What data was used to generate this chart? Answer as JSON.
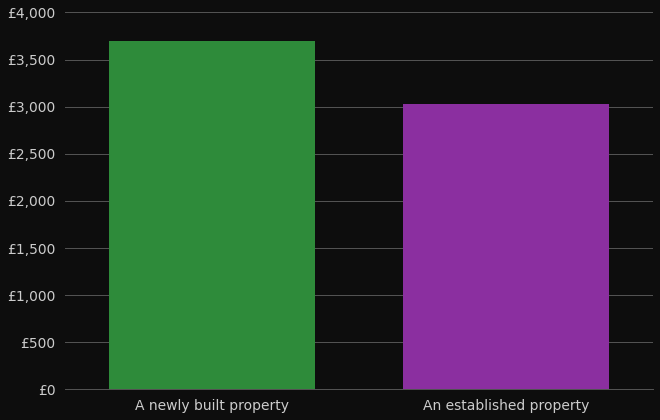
{
  "categories": [
    "A newly built property",
    "An established property"
  ],
  "values": [
    3700,
    3026
  ],
  "bar_colors": [
    "#2e8b3a",
    "#8b2fa0"
  ],
  "background_color": "#0d0d0d",
  "text_color": "#cccccc",
  "grid_color": "#555555",
  "ylim": [
    0,
    4000
  ],
  "yticks": [
    0,
    500,
    1000,
    1500,
    2000,
    2500,
    3000,
    3500,
    4000
  ],
  "ytick_labels": [
    "£0",
    "£500",
    "£1,000",
    "£1,500",
    "£2,000",
    "£2,500",
    "£3,000",
    "£3,500",
    "£4,000"
  ],
  "bar_positions": [
    1,
    3
  ],
  "bar_width": 1.4,
  "xlim": [
    0,
    4
  ],
  "xlabel_fontsize": 10,
  "tick_fontsize": 10
}
